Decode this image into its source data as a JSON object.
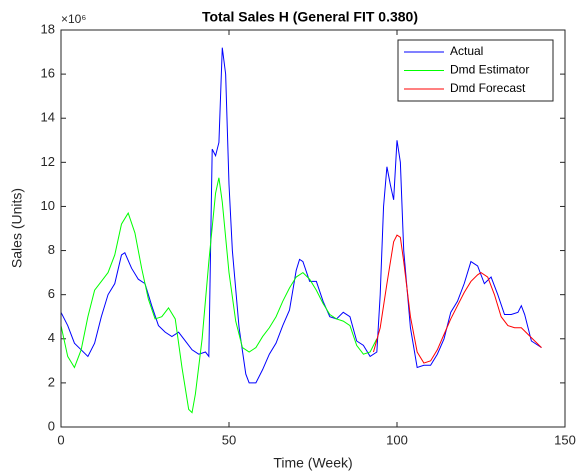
{
  "chart_data": {
    "type": "line",
    "title": "Total Sales H (General FIT 0.380)",
    "x_label": "Time (Week)",
    "y_label": "Sales (Units)",
    "y_multiplier": "×10⁶",
    "xlim": [
      0,
      150
    ],
    "xticks": [
      0,
      50,
      100,
      150
    ],
    "ylim": [
      0,
      18
    ],
    "yticks": [
      0,
      2,
      4,
      6,
      8,
      10,
      12,
      14,
      16,
      18
    ],
    "legend": "upper right",
    "series": [
      {
        "name": "Actual",
        "color": "#0000ff",
        "x": [
          0,
          2,
          4,
          6,
          8,
          10,
          12,
          14,
          16,
          18,
          19,
          21,
          23,
          25,
          27,
          29,
          31,
          33,
          35,
          37,
          39,
          41,
          43,
          44,
          45,
          46,
          47,
          48,
          49,
          50,
          51,
          53,
          55,
          56,
          58,
          60,
          62,
          64,
          66,
          68,
          70,
          71,
          72,
          74,
          76,
          78,
          80,
          82,
          84,
          86,
          88,
          90,
          92,
          94,
          95,
          96,
          97,
          98,
          99,
          100,
          101,
          102,
          104,
          106,
          108,
          110,
          112,
          114,
          116,
          118,
          120,
          122,
          124,
          126,
          128,
          130,
          132,
          134,
          136,
          137,
          138,
          140,
          142,
          143
        ],
        "values": [
          5.2,
          4.6,
          3.8,
          3.5,
          3.2,
          3.8,
          5.0,
          6.0,
          6.5,
          7.8,
          7.9,
          7.2,
          6.7,
          6.5,
          5.5,
          4.6,
          4.3,
          4.1,
          4.3,
          3.9,
          3.5,
          3.3,
          3.4,
          3.2,
          12.6,
          12.3,
          12.9,
          17.2,
          16.0,
          11.0,
          8.0,
          4.5,
          2.4,
          2.0,
          2.0,
          2.6,
          3.3,
          3.8,
          4.6,
          5.3,
          7.1,
          7.6,
          7.5,
          6.6,
          6.6,
          5.7,
          5.0,
          4.9,
          5.2,
          5.0,
          3.9,
          3.7,
          3.2,
          3.4,
          6.0,
          10.0,
          11.8,
          11.0,
          10.3,
          13.0,
          12.0,
          8.0,
          4.5,
          2.7,
          2.8,
          2.8,
          3.3,
          4.0,
          5.2,
          5.7,
          6.5,
          7.5,
          7.3,
          6.5,
          6.8,
          6.0,
          5.1,
          5.1,
          5.2,
          5.5,
          5.1,
          3.9,
          3.7,
          3.6
        ]
      },
      {
        "name": "Dmd Estimator",
        "color": "#00ff00",
        "x": [
          0,
          2,
          4,
          6,
          8,
          10,
          12,
          14,
          16,
          18,
          20,
          22,
          24,
          26,
          28,
          30,
          32,
          34,
          36,
          38,
          39,
          40,
          42,
          44,
          46,
          47,
          48,
          50,
          52,
          54,
          56,
          58,
          60,
          62,
          64,
          66,
          68,
          70,
          72,
          74,
          76,
          78,
          80,
          82,
          84,
          86,
          88,
          90,
          92,
          94
        ],
        "values": [
          4.6,
          3.2,
          2.7,
          3.5,
          5.0,
          6.2,
          6.6,
          7.0,
          7.8,
          9.2,
          9.7,
          8.8,
          7.2,
          5.8,
          4.9,
          5.0,
          5.4,
          4.9,
          2.7,
          0.8,
          0.65,
          1.5,
          4.0,
          7.5,
          10.6,
          11.3,
          10.2,
          7.0,
          4.8,
          3.6,
          3.4,
          3.6,
          4.1,
          4.5,
          5.0,
          5.7,
          6.3,
          6.8,
          7.0,
          6.7,
          6.2,
          5.6,
          5.1,
          4.9,
          4.8,
          4.6,
          3.7,
          3.3,
          3.4,
          4.0
        ]
      },
      {
        "name": "Dmd Forecast",
        "color": "#ff0000",
        "x": [
          93,
          95,
          97,
          99,
          100,
          101,
          102,
          104,
          106,
          108,
          110,
          112,
          114,
          116,
          118,
          120,
          122,
          124,
          125,
          127,
          129,
          131,
          133,
          135,
          137,
          139,
          141,
          143
        ],
        "values": [
          3.4,
          4.5,
          6.5,
          8.4,
          8.7,
          8.6,
          7.5,
          5.0,
          3.4,
          2.9,
          3.0,
          3.5,
          4.2,
          4.9,
          5.5,
          6.1,
          6.6,
          6.9,
          7.0,
          6.8,
          6.0,
          5.0,
          4.6,
          4.5,
          4.5,
          4.2,
          3.9,
          3.6
        ]
      }
    ]
  }
}
